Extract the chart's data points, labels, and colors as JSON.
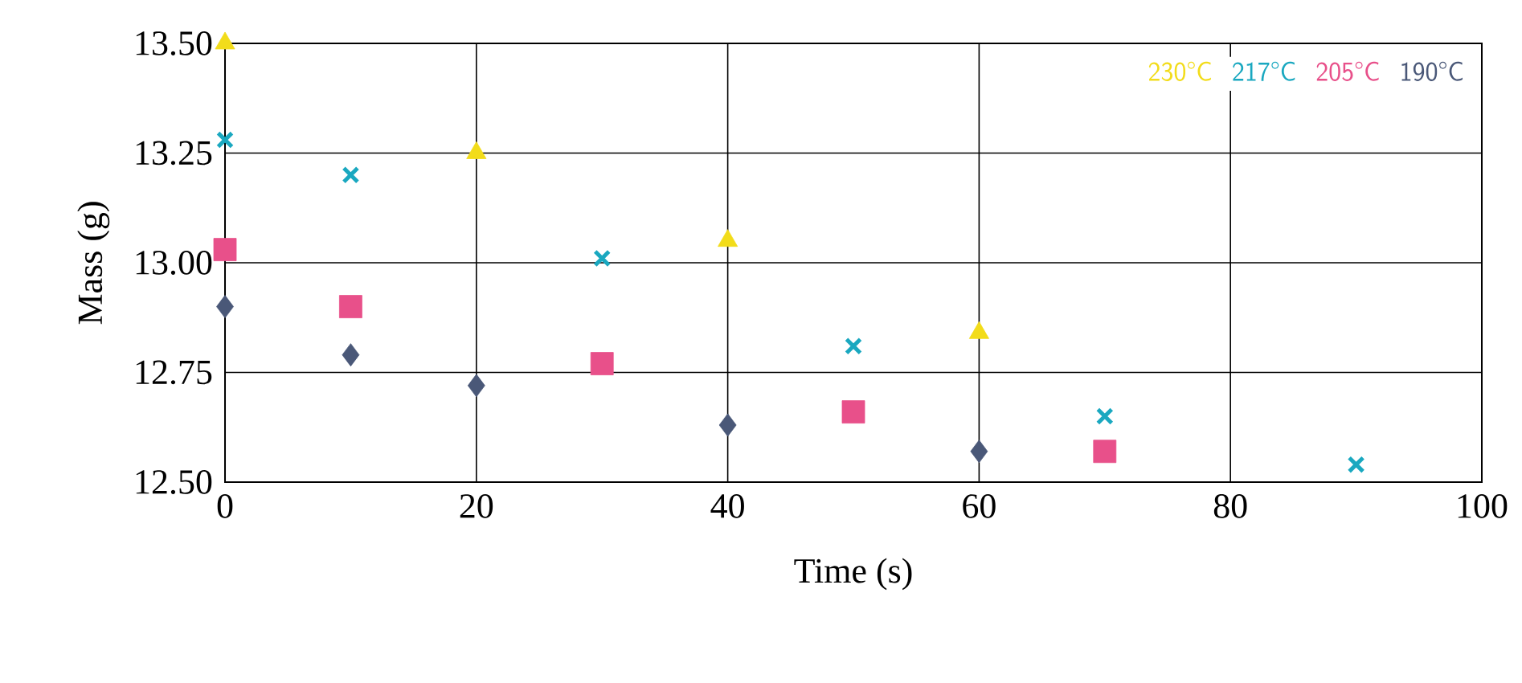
{
  "chart_data": {
    "type": "scatter",
    "xlabel": "Time (s)",
    "ylabel": "Mass (g)",
    "xlim": [
      0,
      100
    ],
    "xticks": [
      0,
      20,
      40,
      60,
      80,
      100
    ],
    "ylim": [
      12.5,
      13.5
    ],
    "yticks": [
      {
        "value": 12.5,
        "label": "12.50"
      },
      {
        "value": 12.75,
        "label": "12.75"
      },
      {
        "value": 13.0,
        "label": "13.00"
      },
      {
        "value": 13.25,
        "label": "13.25"
      },
      {
        "value": 13.5,
        "label": "13.50"
      }
    ],
    "grid": true,
    "legend": "top right",
    "series": [
      {
        "name": "230°C",
        "color": "#f2dc1a",
        "marker": "triangle",
        "x": [
          0,
          20,
          40,
          60
        ],
        "values": [
          13.5,
          13.25,
          13.05,
          12.84
        ]
      },
      {
        "name": "217°C",
        "color": "#1aa8c0",
        "marker": "cross",
        "x": [
          0,
          10,
          30,
          50,
          70,
          90
        ],
        "values": [
          13.28,
          13.2,
          13.01,
          12.81,
          12.65,
          12.54
        ]
      },
      {
        "name": "205°C",
        "color": "#e8508a",
        "marker": "square",
        "x": [
          0,
          10,
          30,
          50,
          70
        ],
        "values": [
          13.03,
          12.9,
          12.77,
          12.66,
          12.57
        ]
      },
      {
        "name": "190°C",
        "color": "#4a5878",
        "marker": "diamond",
        "x": [
          0,
          10,
          20,
          40,
          60
        ],
        "values": [
          12.9,
          12.79,
          12.72,
          12.63,
          12.57
        ]
      }
    ]
  }
}
